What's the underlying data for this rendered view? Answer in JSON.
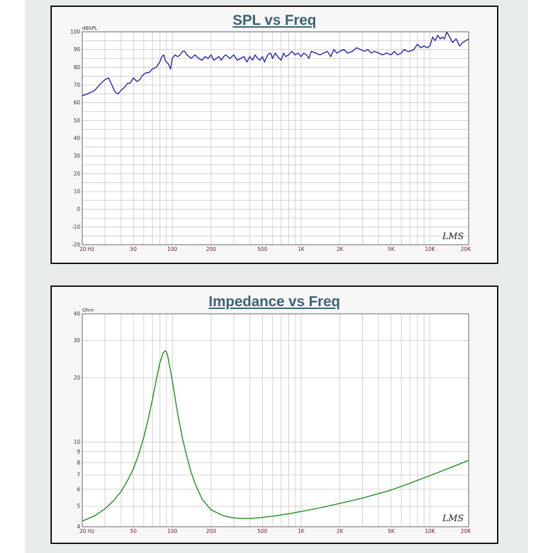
{
  "chart_data": [
    {
      "type": "line",
      "title": "SPL vs Freq",
      "unit_label": "dBSPL",
      "watermark": "LMS",
      "x_scale": "log",
      "xlim": [
        20,
        20000
      ],
      "ylim": [
        -20,
        100
      ],
      "grid": true,
      "colors": {
        "line": "#2222aa",
        "grid": "#c8c8c8"
      },
      "xticks": [
        {
          "v": 20,
          "label": "20 Hz"
        },
        {
          "v": 50,
          "label": "50"
        },
        {
          "v": 100,
          "label": "100"
        },
        {
          "v": 200,
          "label": "200"
        },
        {
          "v": 500,
          "label": "500"
        },
        {
          "v": 1000,
          "label": "1K"
        },
        {
          "v": 2000,
          "label": "2K"
        },
        {
          "v": 5000,
          "label": "5K"
        },
        {
          "v": 10000,
          "label": "10K"
        },
        {
          "v": 20000,
          "label": "20K"
        }
      ],
      "yticks": [
        {
          "v": 100,
          "label": "100"
        },
        {
          "v": 90,
          "label": "90"
        },
        {
          "v": 80,
          "label": "80"
        },
        {
          "v": 70,
          "label": "70"
        },
        {
          "v": 60,
          "label": "60"
        },
        {
          "v": 50,
          "label": "50"
        },
        {
          "v": 40,
          "label": "40"
        },
        {
          "v": 30,
          "label": "30"
        },
        {
          "v": 20,
          "label": "20"
        },
        {
          "v": 10,
          "label": "10"
        },
        {
          "v": 0,
          "label": "0"
        },
        {
          "v": -10,
          "label": "-10"
        },
        {
          "v": -20,
          "label": "-20"
        }
      ],
      "series": [
        {
          "x": [
            20,
            22,
            25,
            28,
            30,
            32,
            34,
            36,
            38,
            40,
            43,
            45,
            47,
            50,
            53,
            56,
            58,
            60,
            63,
            66,
            70,
            75,
            80,
            83,
            86,
            88,
            90,
            93,
            97,
            100,
            105,
            110,
            115,
            120,
            125,
            130,
            135,
            140,
            150,
            160,
            170,
            180,
            190,
            200,
            210,
            220,
            230,
            240,
            250,
            260,
            280,
            300,
            320,
            340,
            360,
            380,
            400,
            420,
            440,
            460,
            480,
            500,
            520,
            550,
            580,
            600,
            630,
            660,
            700,
            730,
            760,
            800,
            850,
            900,
            950,
            1000,
            1050,
            1100,
            1150,
            1200,
            1300,
            1400,
            1500,
            1600,
            1700,
            1800,
            1900,
            2000,
            2150,
            2300,
            2500,
            2700,
            2900,
            3100,
            3300,
            3500,
            3700,
            4000,
            4300,
            4600,
            5000,
            5300,
            5600,
            6000,
            6300,
            6700,
            7000,
            7500,
            8000,
            8500,
            9000,
            9500,
            10000,
            10500,
            11000,
            11500,
            12000,
            12500,
            13000,
            13500,
            14000,
            15000,
            16000,
            17000,
            18000,
            19000,
            20000
          ],
          "y": [
            64,
            65,
            67,
            71,
            73,
            74,
            70,
            66,
            65,
            67,
            69,
            71,
            71,
            74,
            72,
            73,
            75,
            76,
            77,
            77,
            79,
            80,
            83,
            86,
            87,
            84,
            83,
            82,
            79,
            85,
            87,
            86,
            87,
            89,
            89,
            87,
            86,
            85,
            87,
            85,
            84,
            86,
            85,
            87,
            84,
            85,
            86,
            84,
            86,
            87,
            85,
            87,
            84,
            85,
            86,
            83,
            86,
            84,
            87,
            85,
            84,
            86,
            83,
            87,
            88,
            85,
            88,
            86,
            84,
            88,
            86,
            87,
            89,
            87,
            88,
            86,
            88,
            87,
            85,
            89,
            88,
            87,
            88,
            89,
            86,
            90,
            88,
            89,
            90,
            88,
            89,
            91,
            90,
            89,
            90,
            88,
            89,
            88,
            87,
            88,
            87,
            89,
            87,
            88,
            90,
            89,
            89,
            90,
            93,
            91,
            92,
            91,
            92,
            97,
            95,
            98,
            96,
            97,
            96,
            100,
            98,
            94,
            96,
            92,
            94,
            95,
            96
          ]
        }
      ]
    },
    {
      "type": "line",
      "title": "Impedance vs Freq",
      "unit_label": "Ohm",
      "watermark": "LMS",
      "x_scale": "log",
      "y_scale": "log",
      "xlim": [
        20,
        20000
      ],
      "ylim": [
        4,
        40
      ],
      "grid": true,
      "colors": {
        "line": "#1d8a1d",
        "grid": "#c8c8c8"
      },
      "xticks": [
        {
          "v": 20,
          "label": "20 Hz"
        },
        {
          "v": 50,
          "label": "50"
        },
        {
          "v": 100,
          "label": "100"
        },
        {
          "v": 200,
          "label": "200"
        },
        {
          "v": 500,
          "label": "500"
        },
        {
          "v": 1000,
          "label": "1K"
        },
        {
          "v": 2000,
          "label": "2K"
        },
        {
          "v": 5000,
          "label": "5K"
        },
        {
          "v": 10000,
          "label": "10K"
        },
        {
          "v": 20000,
          "label": "20K"
        }
      ],
      "yticks": [
        {
          "v": 40,
          "label": "40"
        },
        {
          "v": 30,
          "label": "30"
        },
        {
          "v": 20,
          "label": "20"
        },
        {
          "v": 10,
          "label": "10"
        },
        {
          "v": 9,
          "label": "9"
        },
        {
          "v": 8,
          "label": "8"
        },
        {
          "v": 7,
          "label": "7"
        },
        {
          "v": 6,
          "label": "6"
        },
        {
          "v": 5,
          "label": "5"
        },
        {
          "v": 4,
          "label": "4"
        }
      ],
      "series": [
        {
          "x": [
            20,
            25,
            30,
            35,
            40,
            45,
            50,
            55,
            60,
            65,
            70,
            75,
            80,
            85,
            88,
            90,
            92,
            95,
            100,
            105,
            110,
            120,
            130,
            140,
            150,
            170,
            200,
            250,
            300,
            350,
            400,
            450,
            500,
            600,
            700,
            800,
            1000,
            1500,
            2000,
            3000,
            5000,
            7000,
            10000,
            15000,
            20000
          ],
          "y": [
            4.25,
            4.5,
            4.85,
            5.3,
            5.85,
            6.6,
            7.5,
            8.8,
            10.5,
            12.8,
            15.8,
            19.5,
            23.5,
            26.3,
            26.8,
            26.5,
            25.5,
            23.0,
            19.5,
            16.2,
            13.6,
            10.4,
            8.5,
            7.2,
            6.4,
            5.4,
            4.8,
            4.5,
            4.4,
            4.38,
            4.38,
            4.4,
            4.42,
            4.48,
            4.55,
            4.6,
            4.72,
            4.95,
            5.15,
            5.45,
            5.95,
            6.4,
            6.95,
            7.65,
            8.2
          ]
        }
      ]
    }
  ]
}
